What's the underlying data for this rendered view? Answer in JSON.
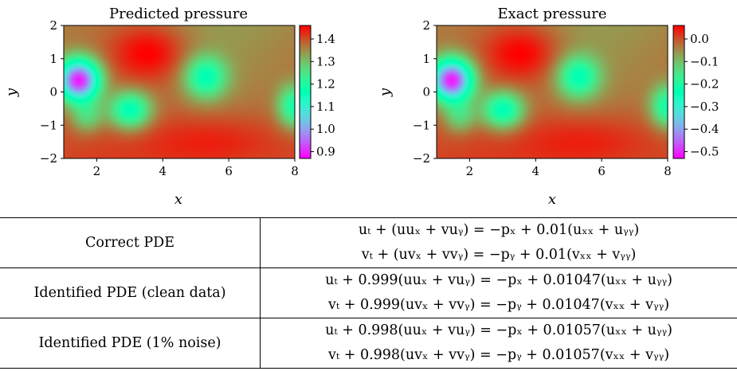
{
  "chart_data": [
    {
      "type": "heatmap",
      "title": "Predicted pressure",
      "xlabel": "x",
      "ylabel": "y",
      "xlim": [
        1,
        8
      ],
      "ylim": [
        -2,
        2
      ],
      "xticks": [
        "2",
        "4",
        "6",
        "8"
      ],
      "yticks": [
        "2",
        "1",
        "0",
        "−1",
        "−2"
      ],
      "colorbar": {
        "ticks": [
          "1.4",
          "1.3",
          "1.2",
          "1.1",
          "1.0",
          "0.9"
        ],
        "range": [
          0.87,
          1.46
        ]
      },
      "colormap": "rainbow"
    },
    {
      "type": "heatmap",
      "title": "Exact pressure",
      "xlabel": "x",
      "ylabel": "y",
      "xlim": [
        1,
        8
      ],
      "ylim": [
        -2,
        2
      ],
      "xticks": [
        "2",
        "4",
        "6",
        "8"
      ],
      "yticks": [
        "2",
        "1",
        "0",
        "−1",
        "−2"
      ],
      "colorbar": {
        "ticks": [
          "0.0",
          "−0.1",
          "−0.2",
          "−0.3",
          "−0.4",
          "−0.5"
        ],
        "range": [
          -0.53,
          0.06
        ]
      },
      "colormap": "rainbow"
    }
  ],
  "pressure_field": {
    "base": 1.0,
    "features": [
      {
        "x": 1.45,
        "y": 0.35,
        "amp": -0.95,
        "sx": 0.45,
        "sy": 0.45
      },
      {
        "x": 3.0,
        "y": -0.55,
        "amp": -0.45,
        "sx": 0.45,
        "sy": 0.4
      },
      {
        "x": 5.3,
        "y": 0.45,
        "amp": -0.38,
        "sx": 0.45,
        "sy": 0.45
      },
      {
        "x": 8.0,
        "y": -0.45,
        "amp": -0.38,
        "sx": 0.35,
        "sy": 0.45
      },
      {
        "x": 3.6,
        "y": 1.2,
        "amp": 0.18,
        "sx": 0.8,
        "sy": 0.6
      },
      {
        "x": 5.5,
        "y": -1.5,
        "amp": 0.12,
        "sx": 1.5,
        "sy": 0.6
      },
      {
        "x": 1.7,
        "y": -0.75,
        "amp": -0.22,
        "sx": 0.35,
        "sy": 0.35
      }
    ]
  },
  "table": {
    "rows": [
      {
        "label": "Correct PDE",
        "eq1": "uₜ + (uuₓ + vuᵧ) = −pₓ + 0.01(uₓₓ + uᵧᵧ)",
        "eq2": "vₜ + (uvₓ + vvᵧ) = −pᵧ + 0.01(vₓₓ + vᵧᵧ)"
      },
      {
        "label": "Identified PDE (clean data)",
        "eq1": "uₜ + 0.999(uuₓ + vuᵧ) = −pₓ + 0.01047(uₓₓ + uᵧᵧ)",
        "eq2": "vₜ + 0.999(uvₓ + vvᵧ) = −pᵧ + 0.01047(vₓₓ + vᵧᵧ)"
      },
      {
        "label": "Identified PDE (1% noise)",
        "eq1": "uₜ + 0.998(uuₓ + vuᵧ) = −pₓ + 0.01057(uₓₓ + uᵧᵧ)",
        "eq2": "vₜ + 0.998(uvₓ + vvᵧ) = −pᵧ + 0.01057(vₓₓ + vᵧᵧ)"
      }
    ]
  }
}
